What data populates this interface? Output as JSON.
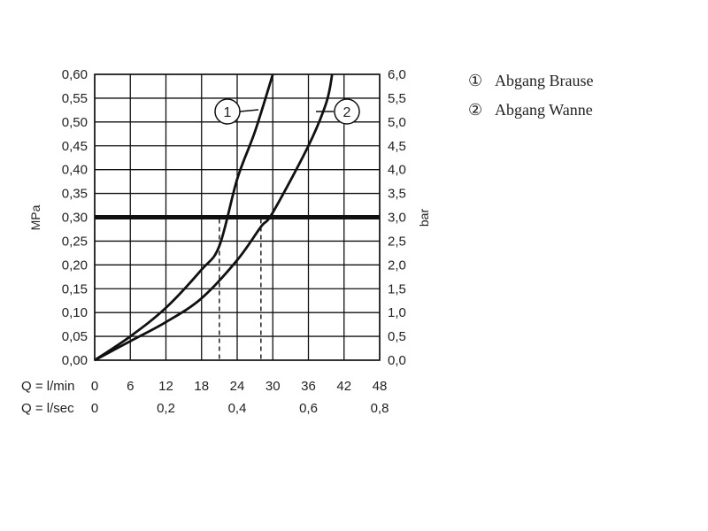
{
  "chart_data": {
    "type": "line",
    "ylabel_left": "MPa",
    "ylabel_right": "bar",
    "y_left_ticks": [
      "0,00",
      "0,05",
      "0,10",
      "0,15",
      "0,20",
      "0,25",
      "0,30",
      "0,35",
      "0,40",
      "0,45",
      "0,50",
      "0,55",
      "0,60"
    ],
    "y_right_ticks": [
      "0,0",
      "0,5",
      "1,0",
      "1,5",
      "2,0",
      "2,5",
      "3,0",
      "3,5",
      "4,0",
      "4,5",
      "5,0",
      "5,5",
      "6,0"
    ],
    "x_row1_label": "Q = l/min",
    "x_row1_ticks": [
      "0",
      "6",
      "12",
      "18",
      "24",
      "30",
      "36",
      "42",
      "48"
    ],
    "x_row2_label": "Q = l/sec",
    "x_row2_ticks": [
      "0",
      "0,2",
      "0,4",
      "0,6",
      "0,8"
    ],
    "xlim": [
      0,
      48
    ],
    "ylim": [
      0,
      0.6
    ],
    "grid": true,
    "reference_line": {
      "y": 0.3
    },
    "series": [
      {
        "name": "Abgang Brause",
        "marker": "1",
        "points": [
          [
            0,
            0
          ],
          [
            6,
            0.05
          ],
          [
            12,
            0.11
          ],
          [
            18,
            0.19
          ],
          [
            21,
            0.24
          ],
          [
            24,
            0.38
          ],
          [
            27,
            0.48
          ],
          [
            30,
            0.6
          ]
        ],
        "drop_x": 21
      },
      {
        "name": "Abgang Wanne",
        "marker": "2",
        "points": [
          [
            0,
            0
          ],
          [
            6,
            0.04
          ],
          [
            12,
            0.08
          ],
          [
            18,
            0.13
          ],
          [
            24,
            0.21
          ],
          [
            28,
            0.28
          ],
          [
            30,
            0.31
          ],
          [
            36,
            0.45
          ],
          [
            39,
            0.54
          ],
          [
            40,
            0.6
          ]
        ],
        "drop_x": 28
      }
    ],
    "legend": [
      {
        "marker": "①",
        "label": "Abgang Brause"
      },
      {
        "marker": "②",
        "label": "Abgang Wanne"
      }
    ]
  }
}
